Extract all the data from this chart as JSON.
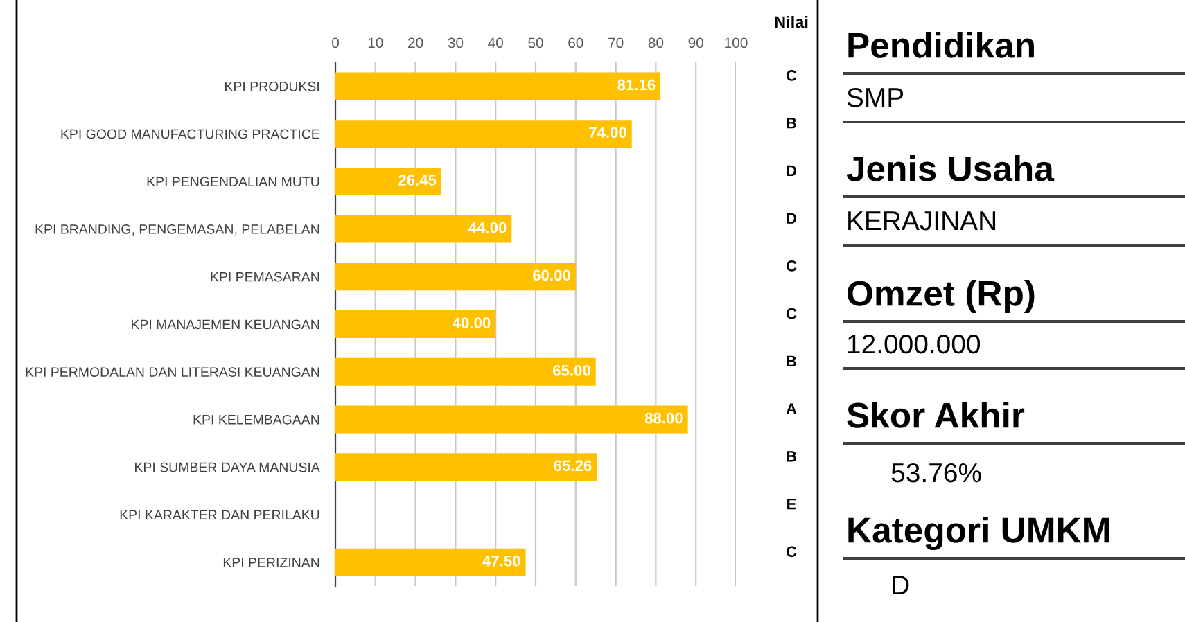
{
  "chart_data": [
    {
      "type": "bar",
      "orientation": "horizontal",
      "categories": [
        "KPI PRODUKSI",
        "KPI GOOD MANUFACTURING PRACTICE",
        "KPI PENGENDALIAN MUTU",
        "KPI BRANDING, PENGEMASAN, PELABELAN",
        "KPI PEMASARAN",
        "KPI MANAJEMEN KEUANGAN",
        "KPI PERMODALAN DAN LITERASI KEUANGAN",
        "KPI KELEMBAGAAN",
        "KPI SUMBER DAYA MANUSIA",
        "KPI KARAKTER DAN PERILAKU",
        "KPI PERIZINAN"
      ],
      "values": [
        81.16,
        74.0,
        26.45,
        44.0,
        60.0,
        40.0,
        65.0,
        88.0,
        65.26,
        null,
        47.5
      ],
      "value_labels": [
        "81.16",
        "74.00",
        "26.45",
        "44.00",
        "60.00",
        "40.00",
        "65.00",
        "88.00",
        "65.26",
        null,
        "47.50"
      ],
      "color": "#ffc000",
      "xlim": [
        0,
        100
      ],
      "xticks": [
        0,
        10,
        20,
        30,
        40,
        50,
        60,
        70,
        80,
        90,
        100
      ],
      "grid": "x",
      "annotations": [
        "Nilai",
        "C",
        "B",
        "D",
        "D",
        "C",
        "C",
        "B",
        "A",
        "B",
        "E",
        "C"
      ]
    },
    {
      "type": "other",
      "annotations": [
        "Pendidikan",
        "SMP",
        "Jenis Usaha",
        "KERAJINAN",
        "Omzet (Rp)",
        "12.000.000",
        "Skor Akhir",
        "53.76%",
        "Kategori UMKM",
        "D"
      ]
    }
  ]
}
